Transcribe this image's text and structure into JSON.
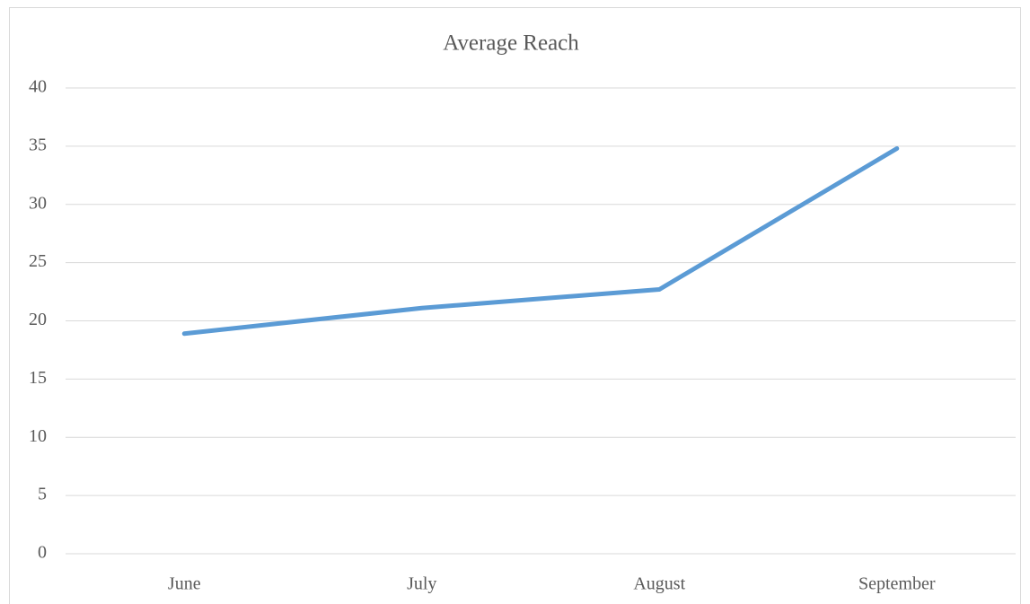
{
  "chart_data": {
    "type": "line",
    "title": "Average Reach",
    "categories": [
      "June",
      "July",
      "August",
      "September"
    ],
    "series": [
      {
        "name": "Average Reach",
        "color": "#5b9bd5",
        "values": [
          18.9,
          21.1,
          22.7,
          34.8
        ]
      }
    ],
    "ylim": [
      0,
      40
    ],
    "yticks": [
      0,
      5,
      10,
      15,
      20,
      25,
      30,
      35,
      40
    ],
    "grid": true
  }
}
